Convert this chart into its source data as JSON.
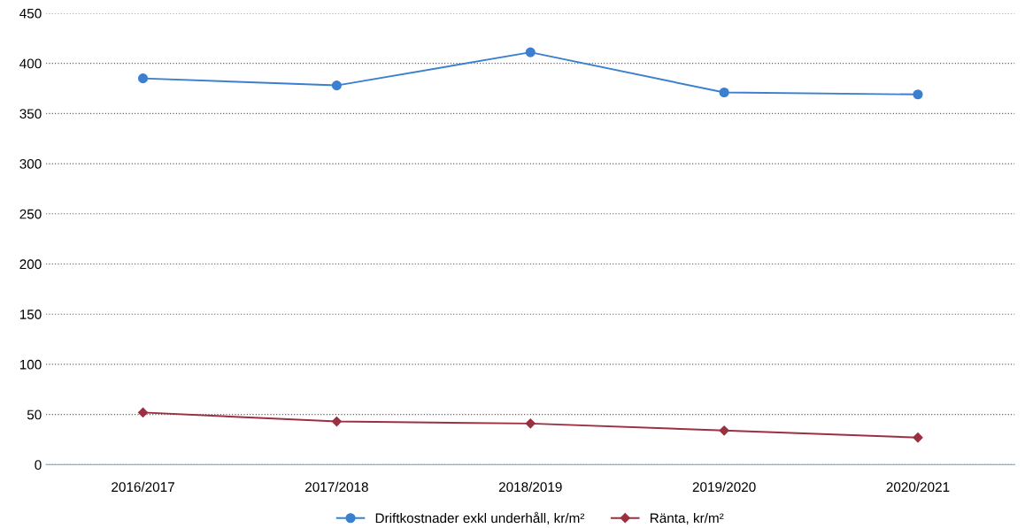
{
  "chart_data": {
    "type": "line",
    "categories": [
      "2016/2017",
      "2017/2018",
      "2018/2019",
      "2019/2020",
      "2020/2021"
    ],
    "series": [
      {
        "name": "Driftkostnader exkl underhåll, kr/m²",
        "color": "#3a7fd0",
        "marker": "circle",
        "values": [
          385,
          378,
          411,
          371,
          369
        ]
      },
      {
        "name": "Ränta, kr/m²",
        "color": "#9b3040",
        "marker": "diamond",
        "values": [
          52,
          43,
          41,
          34,
          27
        ]
      }
    ],
    "ylim": [
      0,
      450
    ],
    "yticks": [
      0,
      50,
      100,
      150,
      200,
      250,
      300,
      350,
      400,
      450
    ],
    "grid": "y",
    "legend": "bottom"
  }
}
